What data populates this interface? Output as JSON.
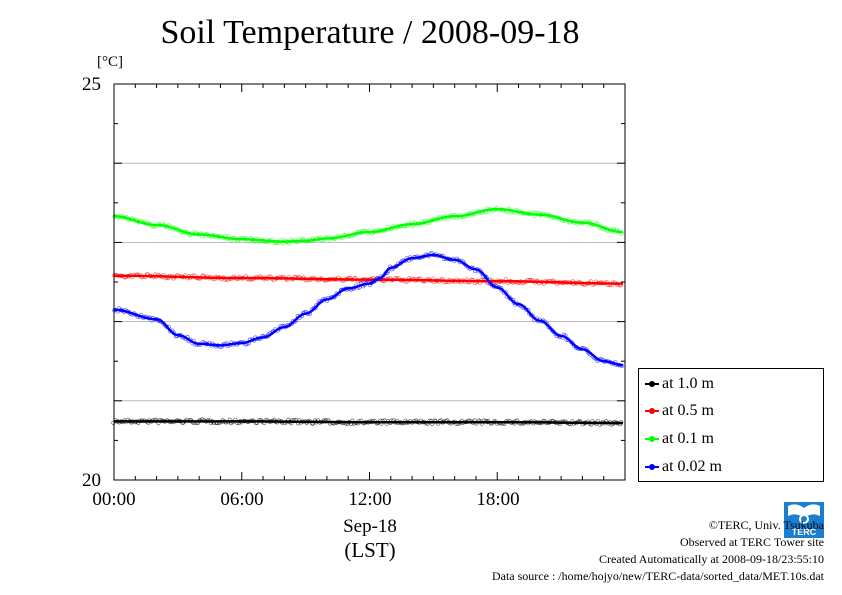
{
  "unit_label": "[°C]",
  "y_ticks": [
    "25",
    "20"
  ],
  "x_ticks": [
    "00:00",
    "06:00",
    "12:00",
    "18:00"
  ],
  "date_label": "Sep-18",
  "time_zone_label": "(LST)",
  "credits": {
    "copyright": "©TERC, Univ. Tsukuba",
    "site": "Observed at TERC Tower site",
    "created": "Created Automatically at 2008-09-18/23:55:10",
    "source": "Data source : /home/hojyo/new/TERC-data/sorted_data/MET.10s.dat"
  },
  "logo_text": "TERC",
  "chart_data": {
    "type": "line",
    "title": "Soil Temperature / 2008-09-18",
    "ylabel": "[°C]",
    "xlabel": "Sep-18 (LST)",
    "xlim": [
      0,
      24
    ],
    "ylim": [
      20,
      25
    ],
    "grid": true,
    "legend_position": "right",
    "series": [
      {
        "name": "at 1.0 m",
        "color": "#000000",
        "x": [
          0,
          6,
          12,
          18,
          23.9
        ],
        "values": [
          20.74,
          20.74,
          20.73,
          20.73,
          20.72
        ]
      },
      {
        "name": "at 0.5 m",
        "color": "#ff0000",
        "x": [
          0,
          6,
          12,
          18,
          23.9
        ],
        "values": [
          22.58,
          22.55,
          22.53,
          22.51,
          22.48
        ]
      },
      {
        "name": "at 0.1 m",
        "color": "#00ff00",
        "x": [
          0,
          2,
          4,
          6,
          8,
          9,
          10,
          12,
          14,
          16,
          18,
          20,
          22,
          23.9
        ],
        "values": [
          23.33,
          23.22,
          23.1,
          23.04,
          23.01,
          23.02,
          23.05,
          23.13,
          23.23,
          23.33,
          23.42,
          23.35,
          23.25,
          23.13
        ]
      },
      {
        "name": "at 0.02 m",
        "color": "#0000ff",
        "x": [
          0,
          2,
          3,
          4,
          5,
          6,
          7,
          8,
          9,
          10,
          11,
          12,
          12.5,
          13,
          14,
          15,
          16,
          17,
          18,
          19,
          20,
          21,
          22,
          23,
          23.9
        ],
        "values": [
          22.15,
          22.03,
          21.83,
          21.72,
          21.7,
          21.73,
          21.8,
          21.93,
          22.1,
          22.28,
          22.42,
          22.48,
          22.55,
          22.68,
          22.8,
          22.84,
          22.78,
          22.66,
          22.43,
          22.22,
          22.01,
          21.82,
          21.65,
          21.5,
          21.45
        ]
      }
    ]
  }
}
